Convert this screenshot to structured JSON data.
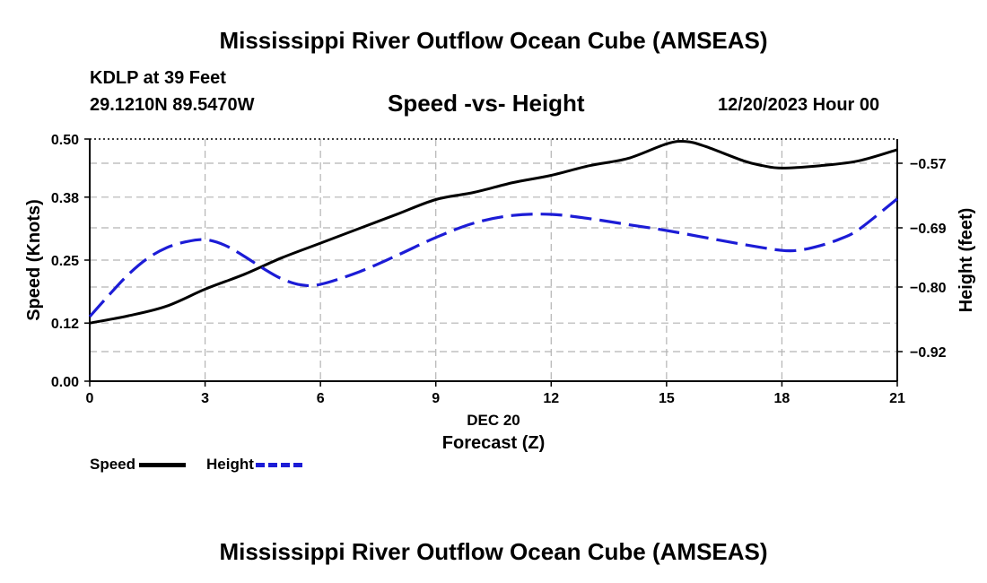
{
  "header": {
    "title_top": "Mississippi River Outflow Ocean Cube (AMSEAS)",
    "station": "KDLP at 39 Feet",
    "coords": "29.1210N  89.5470W",
    "datetime": "12/20/2023 Hour 00"
  },
  "footer": {
    "title_bottom": "Mississippi River Outflow Ocean Cube (AMSEAS)"
  },
  "legend": {
    "speed_label": "Speed",
    "height_label": "Height"
  },
  "colors": {
    "speed": "#000000",
    "height": "#1c1cd6",
    "grid": "#b4b4b4"
  },
  "chart_data": {
    "type": "line",
    "title": "Speed -vs- Height",
    "xlabel": "Forecast (Z)",
    "xlabel_date": "DEC 20",
    "ylabel_left": "Speed (Knots)",
    "ylabel_right": "Height (feet)",
    "xlim": [
      0,
      21
    ],
    "x_ticks": [
      0,
      3,
      6,
      9,
      12,
      15,
      18,
      21
    ],
    "ylim_left": [
      0.0,
      0.5
    ],
    "y_ticks_left": [
      "0.00",
      "0.12",
      "0.25",
      "0.38",
      "0.50"
    ],
    "ylim_right": [
      -0.975,
      -0.525
    ],
    "y_ticks_right": [
      -0.57,
      -0.69,
      -0.8,
      -0.92
    ],
    "y_ticks_right_labels": [
      "−0.57",
      "−0.69",
      "−0.80",
      "−0.92"
    ],
    "series": [
      {
        "name": "Speed",
        "axis": "left",
        "style": "solid",
        "x": [
          0,
          1,
          2,
          3,
          4,
          5,
          6,
          7,
          8,
          9,
          10,
          11,
          12,
          13,
          14,
          15,
          15.5,
          16,
          17,
          17.5,
          18,
          19,
          20,
          21
        ],
        "y": [
          0.12,
          0.135,
          0.155,
          0.19,
          0.22,
          0.255,
          0.285,
          0.315,
          0.345,
          0.375,
          0.39,
          0.41,
          0.425,
          0.445,
          0.46,
          0.49,
          0.495,
          0.485,
          0.455,
          0.445,
          0.44,
          0.445,
          0.455,
          0.478
        ]
      },
      {
        "name": "Height",
        "axis": "right",
        "style": "dashed",
        "x": [
          0,
          0.5,
          1,
          1.5,
          2,
          2.5,
          3,
          3.5,
          4,
          4.5,
          5,
          5.5,
          6,
          7,
          8,
          9,
          10,
          11,
          12,
          13,
          14,
          15,
          16,
          17,
          18,
          18.5,
          19,
          19.5,
          20,
          21
        ],
        "y": [
          -0.855,
          -0.815,
          -0.777,
          -0.747,
          -0.727,
          -0.716,
          -0.712,
          -0.722,
          -0.742,
          -0.765,
          -0.785,
          -0.796,
          -0.795,
          -0.772,
          -0.741,
          -0.708,
          -0.681,
          -0.667,
          -0.665,
          -0.673,
          -0.684,
          -0.695,
          -0.708,
          -0.721,
          -0.732,
          -0.731,
          -0.723,
          -0.711,
          -0.693,
          -0.636
        ]
      }
    ]
  }
}
